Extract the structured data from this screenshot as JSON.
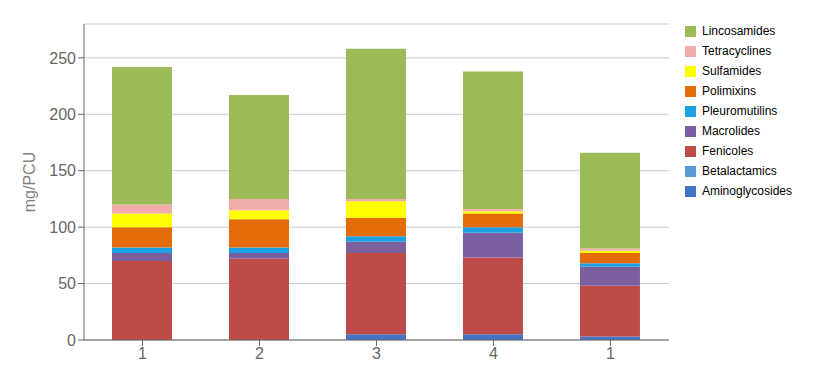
{
  "chart_data": {
    "type": "bar",
    "stacked": true,
    "categories": [
      "1",
      "2",
      "3",
      "4",
      "1"
    ],
    "series": [
      {
        "name": "Aminoglycosides",
        "color": "#4472C4",
        "values": [
          0,
          0,
          5,
          5,
          3
        ]
      },
      {
        "name": "Betalactamics",
        "color": "#5B9BD5",
        "values": [
          0,
          0,
          0,
          0,
          0
        ]
      },
      {
        "name": "Fenicoles",
        "color": "#BE4B48",
        "values": [
          70,
          72,
          72,
          68,
          45
        ]
      },
      {
        "name": "Macrolides",
        "color": "#7B60A0",
        "values": [
          7,
          5,
          10,
          22,
          17
        ]
      },
      {
        "name": "Pleuromutilins",
        "color": "#1BA1E2",
        "values": [
          5,
          5,
          5,
          5,
          3
        ]
      },
      {
        "name": "Polimixins",
        "color": "#E36C09",
        "values": [
          18,
          25,
          16,
          12,
          9
        ]
      },
      {
        "name": "Sulfamides",
        "color": "#FFFF00",
        "values": [
          12,
          8,
          15,
          2,
          2
        ]
      },
      {
        "name": "Tetracyclines",
        "color": "#F2ABAB",
        "values": [
          8,
          10,
          2,
          2,
          2
        ]
      },
      {
        "name": "Lincosamides",
        "color": "#9BBB59",
        "values": [
          122,
          92,
          133,
          122,
          85
        ]
      }
    ],
    "ylabel": "mg/PCU",
    "ylim": [
      0,
      280
    ],
    "yticks": [
      0,
      50,
      100,
      150,
      200,
      250
    ],
    "grid": true,
    "legend": "right"
  }
}
